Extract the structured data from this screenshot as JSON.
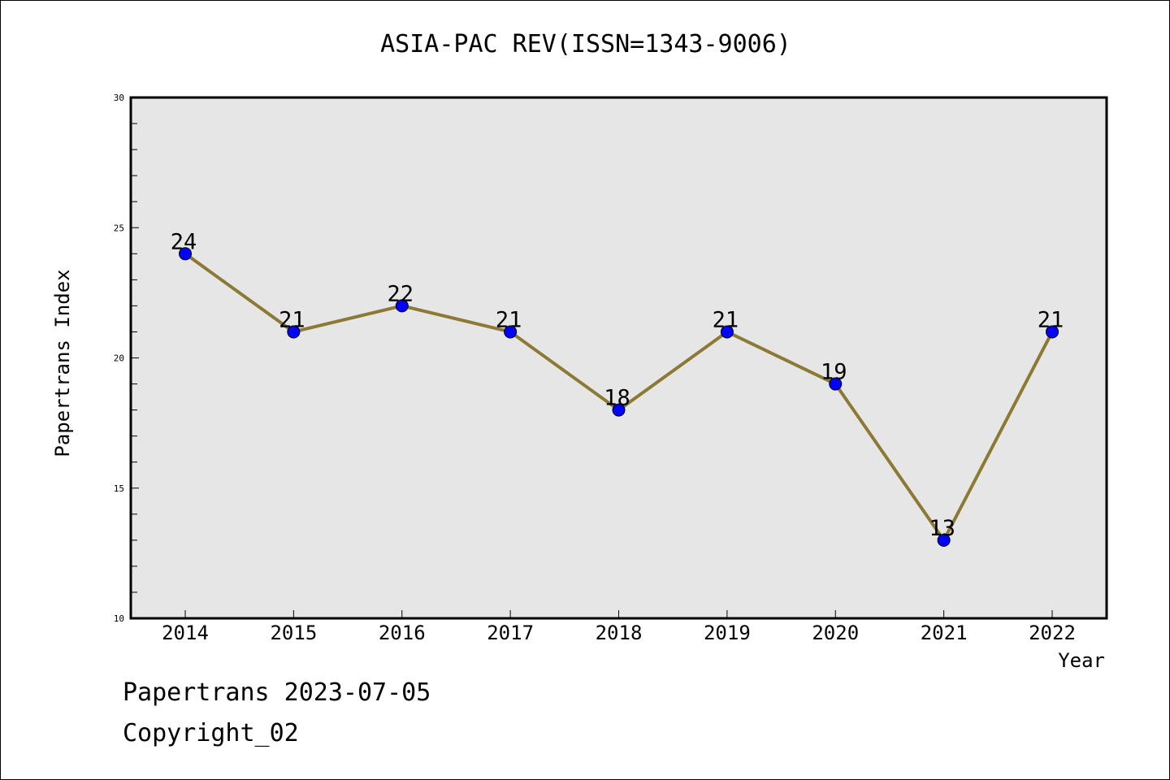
{
  "chart_data": {
    "type": "line",
    "title": "ASIA-PAC REV(ISSN=1343-9006)",
    "xlabel": "Year",
    "ylabel": "Papertrans Index",
    "categories": [
      "2014",
      "2015",
      "2016",
      "2017",
      "2018",
      "2019",
      "2020",
      "2021",
      "2022"
    ],
    "values": [
      24,
      21,
      22,
      21,
      18,
      21,
      19,
      13,
      21
    ],
    "data_labels": [
      "24",
      "21",
      "22",
      "21",
      "18",
      "21",
      "19",
      "13",
      "21"
    ],
    "ylim": [
      10,
      30
    ],
    "yticks": [
      "10",
      "15",
      "20",
      "25",
      "30"
    ],
    "grid": false,
    "colors": {
      "line": "#8c7a34",
      "marker": "#0000ff",
      "plot_background": "#e6e6e6"
    }
  },
  "footer": {
    "line1": "Papertrans 2023-07-05",
    "line2": "Copyright_02"
  }
}
